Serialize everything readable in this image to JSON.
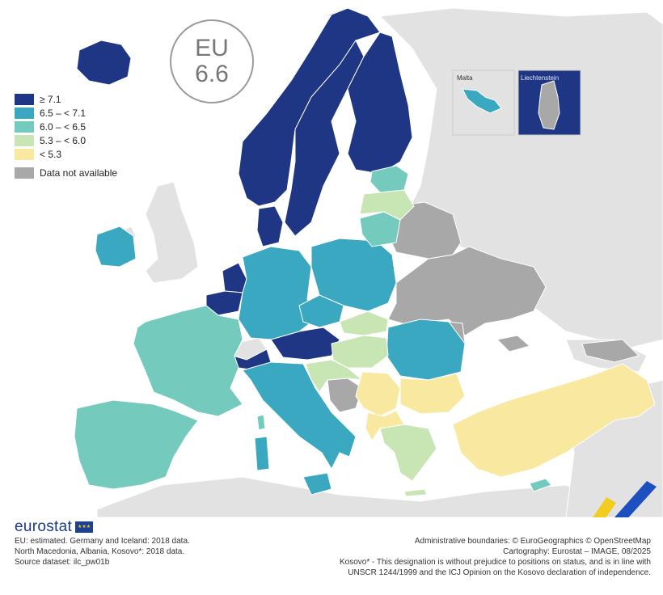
{
  "badge": {
    "line1": "EU",
    "line2": "6.6"
  },
  "legend": {
    "items": [
      {
        "label": "≥ 7.1",
        "color": "#1f3685"
      },
      {
        "label": "6.5 – < 7.1",
        "color": "#3aa8c0"
      },
      {
        "label": "6.0 – < 6.5",
        "color": "#74cbbd"
      },
      {
        "label": "5.3 – < 6.0",
        "color": "#c7e6b4"
      },
      {
        "label": "< 5.3",
        "color": "#f8e8a0"
      }
    ],
    "not_available": {
      "label": "Data not available",
      "color": "#a8a8a8"
    }
  },
  "insets": {
    "malta": "Malta",
    "liechtenstein": "Liechtenstein"
  },
  "logo": {
    "text": "eurostat"
  },
  "notes_left": [
    "EU: estimated. Germany and Iceland: 2018 data.",
    "North Macedonia, Albania, Kosovo*: 2018 data.",
    "Source dataset: ilc_pw01b"
  ],
  "notes_right": [
    "Administrative boundaries: © EuroGeographics © OpenStreetMap",
    "Cartography: Eurostat – IMAGE, 08/2025",
    "Kosovo* - This designation is without prejudice to positions on status, and is in line with",
    "UNSCR 1244/1999 and the ICJ Opinion on the Kosovo declaration of independence."
  ],
  "colors": {
    "sea": "#ffffff",
    "non_eu_land": "#e2e2e2",
    "no_data": "#a8a8a8",
    "border": "#ffffff"
  }
}
